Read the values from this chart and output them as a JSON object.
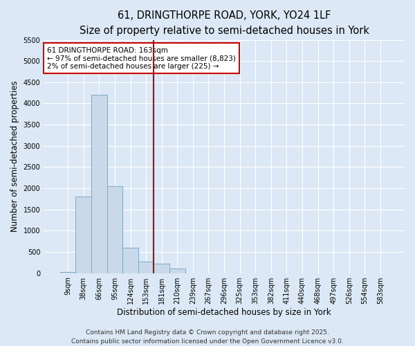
{
  "title_line1": "61, DRINGTHORPE ROAD, YORK, YO24 1LF",
  "title_line2": "Size of property relative to semi-detached houses in York",
  "xlabel": "Distribution of semi-detached houses by size in York",
  "ylabel": "Number of semi-detached properties",
  "bar_categories": [
    "9sqm",
    "38sqm",
    "66sqm",
    "95sqm",
    "124sqm",
    "153sqm",
    "181sqm",
    "210sqm",
    "239sqm",
    "267sqm",
    "296sqm",
    "325sqm",
    "353sqm",
    "382sqm",
    "411sqm",
    "440sqm",
    "468sqm",
    "497sqm",
    "526sqm",
    "554sqm",
    "583sqm"
  ],
  "bar_values": [
    25,
    1800,
    4200,
    2050,
    600,
    270,
    230,
    115,
    0,
    0,
    0,
    0,
    0,
    0,
    0,
    0,
    0,
    0,
    0,
    0,
    0
  ],
  "bar_color": "#c9d9ea",
  "bar_edgecolor": "#7aaac8",
  "vline_x": 5.5,
  "vline_color": "#aa0000",
  "ylim": [
    0,
    5500
  ],
  "yticks": [
    0,
    500,
    1000,
    1500,
    2000,
    2500,
    3000,
    3500,
    4000,
    4500,
    5000,
    5500
  ],
  "annotation_title": "61 DRINGTHORPE ROAD: 163sqm",
  "annotation_line1": "← 97% of semi-detached houses are smaller (8,823)",
  "annotation_line2": "2% of semi-detached houses are larger (225) →",
  "annotation_box_color": "#cc0000",
  "footer_line1": "Contains HM Land Registry data © Crown copyright and database right 2025.",
  "footer_line2": "Contains public sector information licensed under the Open Government Licence v3.0.",
  "background_color": "#dce8f5",
  "plot_background": "#dce8f5",
  "grid_color": "#ffffff",
  "title_fontsize": 10.5,
  "subtitle_fontsize": 9.5,
  "axis_label_fontsize": 8.5,
  "tick_fontsize": 7,
  "annotation_fontsize": 7.5,
  "footer_fontsize": 6.5
}
